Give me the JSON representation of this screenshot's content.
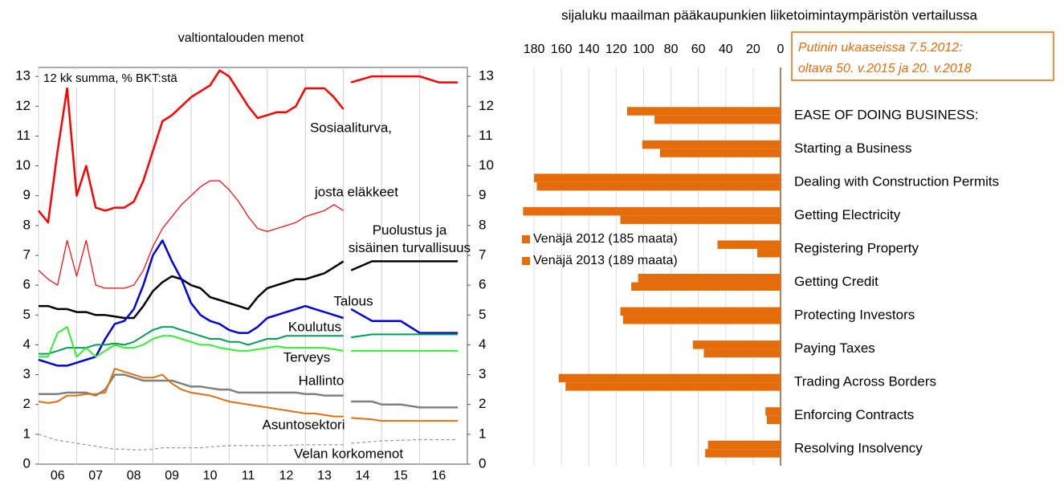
{
  "chart_data": [
    {
      "type": "line",
      "title": "valtiontalouden menot",
      "annotation": "12 kk summa, % BKT:stä",
      "x": [
        2006,
        2006.25,
        2006.5,
        2006.75,
        2007,
        2007.25,
        2007.5,
        2007.75,
        2008,
        2008.25,
        2008.5,
        2008.75,
        2009,
        2009.25,
        2009.5,
        2009.75,
        2010,
        2010.25,
        2010.5,
        2010.75,
        2011,
        2011.25,
        2011.5,
        2011.75,
        2012,
        2012.25,
        2012.5,
        2012.75,
        2013,
        2013.25,
        2013.5,
        2013.75,
        2014,
        2014.1,
        2014.2,
        2014.75,
        2015,
        2015.5,
        2016,
        2016.5,
        2017
      ],
      "xlim": [
        2006,
        2017.25
      ],
      "xticks": [
        {
          "value": 2006,
          "label": "06"
        },
        {
          "value": 2007,
          "label": "07"
        },
        {
          "value": 2008,
          "label": "08"
        },
        {
          "value": 2009,
          "label": "09"
        },
        {
          "value": 2010,
          "label": "10"
        },
        {
          "value": 2011,
          "label": "11"
        },
        {
          "value": 2012,
          "label": "12"
        },
        {
          "value": 2013,
          "label": "13"
        },
        {
          "value": 2014,
          "label": "14"
        },
        {
          "value": 2015,
          "label": "15"
        },
        {
          "value": 2016,
          "label": "16"
        }
      ],
      "ylim": [
        0,
        13.3
      ],
      "yticks": [
        0,
        1,
        2,
        3,
        4,
        5,
        6,
        7,
        8,
        9,
        10,
        11,
        12,
        13
      ],
      "grid": true,
      "series": [
        {
          "name": "Sosiaaliturva,",
          "color": "#ff0000",
          "values": [
            8.5,
            8.1,
            10.5,
            12.6,
            9.0,
            10.0,
            8.6,
            8.5,
            8.6,
            8.6,
            8.8,
            9.5,
            10.5,
            11.5,
            11.7,
            12.0,
            12.3,
            12.5,
            12.7,
            13.2,
            13.0,
            12.5,
            12.0,
            11.6,
            11.7,
            11.8,
            11.8,
            12.0,
            12.6,
            12.6,
            12.6,
            12.3,
            11.9,
            null,
            12.8,
            13.0,
            13.0,
            13.0,
            13.0,
            12.8,
            12.8
          ]
        },
        {
          "name": "josta eläkkeet",
          "color": "#ff0000",
          "values": [
            6.5,
            6.2,
            6.0,
            7.5,
            6.3,
            7.5,
            6.0,
            5.9,
            5.9,
            5.9,
            6.0,
            6.5,
            7.3,
            7.9,
            8.3,
            8.7,
            9.0,
            9.3,
            9.5,
            9.5,
            9.2,
            8.8,
            8.3,
            7.9,
            7.8,
            7.9,
            8.0,
            8.1,
            8.3,
            8.4,
            8.5,
            8.7,
            8.5,
            null,
            null,
            null,
            null,
            null,
            null,
            null,
            null
          ]
        },
        {
          "name": "Puolustus ja\nsisäinen turvallisuus",
          "color": "#000000",
          "values": [
            5.3,
            5.3,
            5.2,
            5.2,
            5.1,
            5.1,
            5.0,
            5.0,
            4.95,
            4.9,
            4.9,
            5.3,
            5.8,
            6.1,
            6.3,
            6.2,
            6.0,
            5.9,
            5.6,
            5.5,
            5.4,
            5.3,
            5.2,
            5.6,
            5.9,
            6.0,
            6.1,
            6.2,
            6.2,
            6.3,
            6.4,
            6.6,
            6.8,
            null,
            6.5,
            6.8,
            6.8,
            6.8,
            6.8,
            6.8,
            6.8
          ]
        },
        {
          "name": "Talous",
          "color": "#0000dd",
          "values": [
            3.5,
            3.4,
            3.3,
            3.3,
            3.4,
            3.5,
            3.6,
            4.2,
            4.7,
            4.8,
            5.2,
            6.0,
            7.0,
            7.5,
            6.8,
            6.2,
            5.4,
            5.0,
            4.8,
            4.7,
            4.5,
            4.4,
            4.4,
            4.6,
            4.9,
            5.0,
            5.1,
            5.2,
            5.3,
            5.2,
            5.1,
            5.0,
            4.9,
            null,
            5.2,
            4.8,
            4.8,
            4.8,
            4.4,
            4.4,
            4.4
          ]
        },
        {
          "name": "Koulutus",
          "color": "#00a050",
          "values": [
            3.7,
            3.7,
            3.8,
            3.9,
            3.9,
            3.9,
            4.0,
            4.0,
            4.05,
            4.0,
            4.1,
            4.3,
            4.5,
            4.6,
            4.6,
            4.5,
            4.4,
            4.3,
            4.2,
            4.2,
            4.1,
            4.1,
            4.0,
            4.1,
            4.2,
            4.2,
            4.3,
            4.3,
            4.3,
            4.3,
            4.3,
            4.3,
            4.3,
            null,
            4.25,
            4.35,
            4.35,
            4.35,
            4.35,
            4.35,
            4.35
          ]
        },
        {
          "name": "Terveys",
          "color": "#33ee33",
          "values": [
            3.6,
            3.6,
            4.4,
            4.6,
            3.6,
            3.9,
            3.6,
            3.8,
            4.0,
            3.9,
            3.9,
            4.0,
            4.2,
            4.3,
            4.3,
            4.2,
            4.1,
            4.0,
            4.0,
            3.9,
            3.85,
            3.8,
            3.8,
            3.85,
            3.9,
            3.95,
            3.9,
            3.9,
            3.9,
            3.9,
            3.9,
            3.85,
            3.8,
            null,
            3.8,
            3.8,
            3.8,
            3.8,
            3.8,
            3.8,
            3.8
          ]
        },
        {
          "name": "Hallinto",
          "color": "#808080",
          "values": [
            2.35,
            2.35,
            2.35,
            2.4,
            2.4,
            2.4,
            2.3,
            2.5,
            3.0,
            3.0,
            2.9,
            2.8,
            2.8,
            2.8,
            2.8,
            2.7,
            2.6,
            2.6,
            2.55,
            2.5,
            2.5,
            2.4,
            2.4,
            2.4,
            2.4,
            2.4,
            2.4,
            2.4,
            2.35,
            2.35,
            2.3,
            2.3,
            2.3,
            null,
            2.1,
            2.1,
            2.0,
            2.0,
            1.9,
            1.9,
            1.9
          ]
        },
        {
          "name": "Asuntosektori",
          "color": "#e07010",
          "values": [
            2.1,
            2.05,
            2.1,
            2.3,
            2.3,
            2.35,
            2.35,
            2.4,
            3.2,
            3.1,
            3.0,
            2.9,
            2.9,
            3.0,
            2.7,
            2.5,
            2.4,
            2.35,
            2.3,
            2.2,
            2.1,
            2.05,
            2.0,
            1.95,
            1.9,
            1.85,
            1.8,
            1.75,
            1.7,
            1.7,
            1.65,
            1.6,
            1.6,
            null,
            1.55,
            1.5,
            1.45,
            1.45,
            1.45,
            1.45,
            1.45
          ]
        },
        {
          "name": "Velan korkomenot",
          "color": "#999999",
          "dash": true,
          "values": [
            1.0,
            0.9,
            0.8,
            0.75,
            0.7,
            0.65,
            0.6,
            0.55,
            0.5,
            0.5,
            0.48,
            0.48,
            0.5,
            0.55,
            0.55,
            0.55,
            0.55,
            0.55,
            0.58,
            0.6,
            0.62,
            0.62,
            0.62,
            0.62,
            0.62,
            0.62,
            0.63,
            0.64,
            0.65,
            0.65,
            0.65,
            0.65,
            0.65,
            null,
            0.7,
            0.75,
            0.78,
            0.8,
            0.82,
            0.82,
            0.82
          ]
        }
      ]
    },
    {
      "type": "barh",
      "title": "sijaluku maailman pääkaupunkien liiketoimintaympäristön vertailussa",
      "annotation": [
        "Putinin ukaaseissa 7.5.2012:",
        "oltava 50. v.2015 ja 20. v.2018"
      ],
      "categories": [
        "EASE OF DOING BUSINESS:",
        "Starting a Business",
        "Dealing with Construction Permits",
        "Getting Electricity",
        "Registering Property",
        "Getting Credit",
        "Protecting Investors",
        "Paying Taxes",
        "Trading Across Borders",
        "Enforcing Contracts",
        "Resolving Insolvency"
      ],
      "xlim": [
        190,
        0
      ],
      "xticks": [
        180,
        160,
        140,
        120,
        100,
        80,
        60,
        40,
        20,
        0
      ],
      "grid": true,
      "series": [
        {
          "name": "Venäjä 2012 (185 maata)",
          "color": "#e46c0a",
          "values": [
            112,
            101,
            180,
            188,
            46,
            104,
            117,
            64,
            162,
            11,
            53
          ]
        },
        {
          "name": "Venäjä 2013 (189 maata)",
          "color": "#e46c0a",
          "values": [
            92,
            88,
            178,
            117,
            17,
            109,
            115,
            56,
            157,
            10,
            55
          ]
        }
      ]
    }
  ]
}
